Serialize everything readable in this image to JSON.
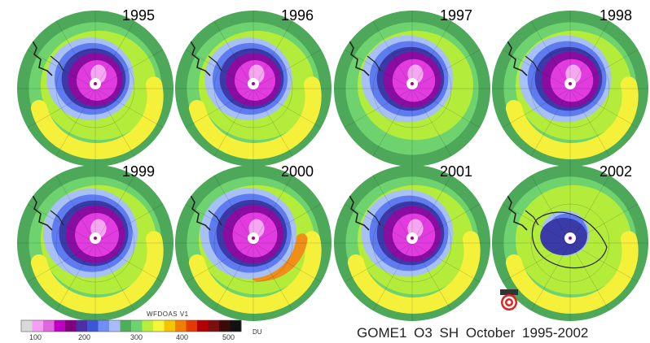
{
  "caption": "GOME1  O3   SH October 1995-2002",
  "scale": {
    "title": "WFDOAS V1",
    "unit": "DU",
    "tick_labels": [
      "100",
      "200",
      "300",
      "400",
      "500"
    ],
    "colors": [
      "#d9d9d9",
      "#f3a0f3",
      "#e066e0",
      "#c000c0",
      "#800080",
      "#4b2ea8",
      "#3a58d4",
      "#6f8ff5",
      "#a7bdf8",
      "#4fae59",
      "#6ed36e",
      "#b8ef3b",
      "#f5f53a",
      "#f5c300",
      "#f07f00",
      "#e23a00",
      "#b30000",
      "#7a1010",
      "#3b0a0a",
      "#111111"
    ]
  },
  "colors": {
    "outer_ring": "#4da85a",
    "green": "#6ed36e",
    "lime": "#b4ec3c",
    "yellow": "#f5f03a",
    "orange": "#f08e1a",
    "light_blue": "#a7c0f5",
    "blue": "#5e7cf0",
    "dark_blue": "#3a3aa8",
    "purple": "#8a0ca0",
    "magenta": "#e23ce0",
    "pink": "#f5a8f0",
    "coast": "#222222"
  },
  "maps": [
    {
      "year": "1995",
      "ring_scale": 1.0,
      "yellow_arc": true,
      "orange_arc": false,
      "weak_hole": false
    },
    {
      "year": "1996",
      "ring_scale": 1.0,
      "yellow_arc": true,
      "orange_arc": false,
      "weak_hole": false
    },
    {
      "year": "1997",
      "ring_scale": 1.05,
      "yellow_arc": false,
      "orange_arc": false,
      "weak_hole": false
    },
    {
      "year": "1998",
      "ring_scale": 1.05,
      "yellow_arc": true,
      "orange_arc": false,
      "weak_hole": false
    },
    {
      "year": "1999",
      "ring_scale": 1.08,
      "yellow_arc": true,
      "orange_arc": false,
      "weak_hole": false
    },
    {
      "year": "2000",
      "ring_scale": 1.1,
      "yellow_arc": true,
      "orange_arc": true,
      "weak_hole": false
    },
    {
      "year": "2001",
      "ring_scale": 1.05,
      "yellow_arc": true,
      "orange_arc": false,
      "weak_hole": false
    },
    {
      "year": "2002",
      "ring_scale": 0.55,
      "yellow_arc": true,
      "orange_arc": false,
      "weak_hole": true
    }
  ]
}
